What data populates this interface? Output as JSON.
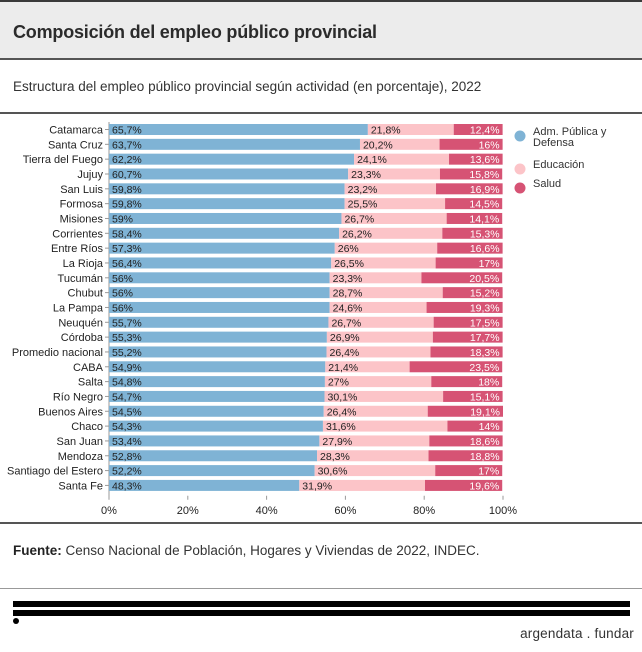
{
  "header": {
    "title": "Composición del empleo público provincial"
  },
  "subtitle": "Estructura del empleo público provincial según actividad (en porcentaje), 2022",
  "footer": {
    "source_label": "Fuente:",
    "source_text": " Censo Nacional de Población, Hogares y Viviendas de 2022, INDEC."
  },
  "brand": {
    "name": "argendata . fundar"
  },
  "chart_data": {
    "type": "bar",
    "orientation": "horizontal",
    "stacked": true,
    "title": "Estructura del empleo público provincial según actividad (en porcentaje), 2022",
    "xlabel": "",
    "ylabel": "",
    "xlim": [
      0,
      100
    ],
    "x_ticks": [
      "0%",
      "20%",
      "40%",
      "60%",
      "80%",
      "100%"
    ],
    "x_tick_values": [
      0,
      20,
      40,
      60,
      80,
      100
    ],
    "grid": false,
    "legend_position": "right",
    "categories": [
      "Catamarca",
      "Santa Cruz",
      "Tierra del Fuego",
      "Jujuy",
      "San Luis",
      "Formosa",
      "Misiones",
      "Corrientes",
      "Entre Ríos",
      "La Rioja",
      "Tucumán",
      "Chubut",
      "La Pampa",
      "Neuquén",
      "Córdoba",
      "Promedio nacional",
      "CABA",
      "Salta",
      "Río Negro",
      "Buenos Aires",
      "Chaco",
      "San Juan",
      "Mendoza",
      "Santiago del Estero",
      "Santa Fe"
    ],
    "series": [
      {
        "name": "Adm. Pública y Defensa",
        "color": "#7fb3d5",
        "values": [
          65.7,
          63.7,
          62.2,
          60.7,
          59.8,
          59.8,
          59,
          58.4,
          57.3,
          56.4,
          56,
          56,
          56,
          55.7,
          55.3,
          55.2,
          54.9,
          54.8,
          54.7,
          54.5,
          54.3,
          53.4,
          52.8,
          52.2,
          48.3
        ],
        "labels": [
          "65,7%",
          "63,7%",
          "62,2%",
          "60,7%",
          "59,8%",
          "59,8%",
          "59%",
          "58,4%",
          "57,3%",
          "56,4%",
          "56%",
          "56%",
          "56%",
          "55,7%",
          "55,3%",
          "55,2%",
          "54,9%",
          "54,8%",
          "54,7%",
          "54,5%",
          "54,3%",
          "53,4%",
          "52,8%",
          "52,2%",
          "48,3%"
        ]
      },
      {
        "name": "Educación",
        "color": "#fcc4c8",
        "values": [
          21.8,
          20.2,
          24.1,
          23.3,
          23.2,
          25.5,
          26.7,
          26.2,
          26,
          26.5,
          23.3,
          28.7,
          24.6,
          26.7,
          26.9,
          26.4,
          21.4,
          27,
          30.1,
          26.4,
          31.6,
          27.9,
          28.3,
          30.6,
          31.9
        ],
        "labels": [
          "21,8%",
          "20,2%",
          "24,1%",
          "23,3%",
          "23,2%",
          "25,5%",
          "26,7%",
          "26,2%",
          "26%",
          "26,5%",
          "23,3%",
          "28,7%",
          "24,6%",
          "26,7%",
          "26,9%",
          "26,4%",
          "21,4%",
          "27%",
          "30,1%",
          "26,4%",
          "31,6%",
          "27,9%",
          "28,3%",
          "30,6%",
          "31,9%"
        ]
      },
      {
        "name": "Salud",
        "color": "#d65374",
        "values": [
          12.4,
          16,
          13.6,
          15.8,
          16.9,
          14.5,
          14.1,
          15.3,
          16.6,
          17,
          20.5,
          15.2,
          19.3,
          17.5,
          17.7,
          18.3,
          23.5,
          18,
          15.1,
          19.1,
          14,
          18.6,
          18.8,
          17,
          19.6
        ],
        "labels": [
          "12,4%",
          "16%",
          "13,6%",
          "15,8%",
          "16,9%",
          "14,5%",
          "14,1%",
          "15,3%",
          "16,6%",
          "17%",
          "20,5%",
          "15,2%",
          "19,3%",
          "17,5%",
          "17,7%",
          "18,3%",
          "23,5%",
          "18%",
          "15,1%",
          "19,1%",
          "14%",
          "18,6%",
          "18,8%",
          "17%",
          "19,6%"
        ]
      }
    ]
  }
}
